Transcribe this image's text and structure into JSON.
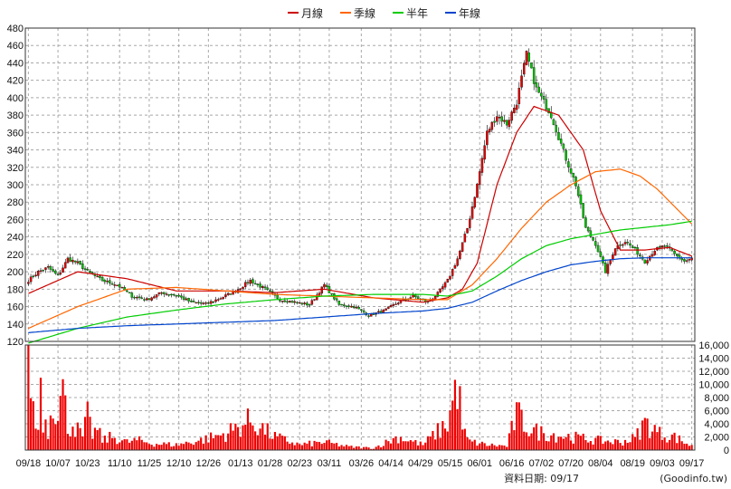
{
  "chart_data": [
    {
      "type": "candlestick",
      "ylim": [
        120,
        480
      ],
      "y_ticks": [
        480,
        460,
        440,
        420,
        400,
        380,
        360,
        340,
        320,
        300,
        280,
        260,
        240,
        220,
        200,
        180,
        160,
        140,
        120
      ],
      "x_tick_labels": [
        "09/18",
        "10/07",
        "10/23",
        "11/10",
        "11/25",
        "12/10",
        "12/26",
        "01/13",
        "01/28",
        "02/23",
        "03/11",
        "03/26",
        "04/14",
        "04/29",
        "05/15",
        "06/01",
        "06/16",
        "07/02",
        "07/20",
        "08/04",
        "08/19",
        "09/03",
        "09/17"
      ],
      "grid": true,
      "legend_position": "top-center",
      "legend": [
        {
          "name": "月線",
          "color": "#cc0000"
        },
        {
          "name": "季線",
          "color": "#ff6600"
        },
        {
          "name": "半年",
          "color": "#00cc00"
        },
        {
          "name": "年線",
          "color": "#0044cc"
        }
      ],
      "candle_up_color": "#e00000",
      "candle_down_color": "#00c000",
      "close_anchors": {
        "x_index": [
          0,
          4,
          8,
          12,
          16,
          20,
          24,
          30,
          36,
          42,
          48,
          54,
          60,
          66,
          72,
          78,
          84,
          90,
          96,
          102,
          108,
          114,
          120,
          126,
          132,
          138,
          144,
          150,
          156,
          162,
          166,
          170,
          174,
          178,
          182,
          186,
          190,
          194,
          198,
          202,
          206,
          212,
          218,
          222,
          226,
          230,
          234,
          238,
          242,
          246,
          250,
          254,
          258,
          262,
          266,
          269
        ],
        "close": [
          190,
          200,
          205,
          195,
          215,
          210,
          200,
          190,
          185,
          172,
          168,
          176,
          173,
          165,
          163,
          170,
          178,
          190,
          180,
          168,
          165,
          162,
          185,
          162,
          160,
          150,
          155,
          165,
          172,
          165,
          175,
          190,
          215,
          250,
          300,
          360,
          380,
          370,
          395,
          450,
          410,
          380,
          330,
          300,
          250,
          232,
          200,
          228,
          235,
          225,
          212,
          225,
          230,
          220,
          212,
          215
        ]
      },
      "moving_averages": [
        {
          "name": "月線",
          "x_index": [
            0,
            20,
            40,
            60,
            80,
            100,
            120,
            140,
            160,
            170,
            176,
            182,
            190,
            198,
            205,
            215,
            225,
            232,
            240,
            250,
            260,
            269
          ],
          "values": [
            175,
            200,
            192,
            178,
            178,
            176,
            180,
            170,
            165,
            170,
            180,
            210,
            300,
            360,
            390,
            380,
            340,
            270,
            225,
            225,
            228,
            218
          ]
        },
        {
          "name": "季線",
          "x_index": [
            0,
            20,
            40,
            60,
            80,
            100,
            120,
            140,
            160,
            170,
            180,
            190,
            200,
            210,
            220,
            230,
            240,
            248,
            255,
            262,
            269
          ],
          "values": [
            135,
            160,
            180,
            182,
            178,
            174,
            172,
            170,
            168,
            168,
            185,
            215,
            250,
            280,
            300,
            315,
            318,
            310,
            295,
            275,
            255
          ]
        },
        {
          "name": "半年",
          "x_index": [
            0,
            20,
            40,
            60,
            80,
            100,
            120,
            140,
            160,
            170,
            180,
            190,
            200,
            210,
            220,
            230,
            240,
            250,
            260,
            269
          ],
          "values": [
            118,
            135,
            148,
            156,
            163,
            168,
            172,
            174,
            174,
            172,
            178,
            195,
            215,
            230,
            238,
            243,
            248,
            251,
            254,
            258
          ]
        },
        {
          "name": "年線",
          "x_index": [
            0,
            20,
            40,
            60,
            80,
            100,
            120,
            140,
            160,
            170,
            180,
            190,
            200,
            210,
            220,
            230,
            240,
            250,
            260,
            269
          ],
          "values": [
            130,
            135,
            138,
            140,
            142,
            144,
            148,
            152,
            155,
            158,
            165,
            178,
            190,
            200,
            208,
            212,
            215,
            216,
            216,
            216
          ]
        }
      ]
    },
    {
      "type": "bar",
      "ylim": [
        0,
        16000
      ],
      "y_ticks": [
        16000,
        14000,
        12000,
        10000,
        8000,
        6000,
        4000,
        2000,
        0
      ],
      "bar_color": "#ee0000",
      "volume_anchors": {
        "x_index": [
          0,
          1,
          2,
          3,
          4,
          5,
          6,
          8,
          10,
          12,
          14,
          16,
          18,
          20,
          22,
          24,
          26,
          28,
          30,
          34,
          40,
          44,
          50,
          60,
          70,
          80,
          90,
          100,
          110,
          120,
          130,
          140,
          150,
          160,
          165,
          170,
          174,
          176,
          178,
          180,
          186,
          194,
          198,
          200,
          204,
          210,
          220,
          230,
          240,
          246,
          250,
          256,
          262,
          269
        ],
        "volume": [
          16000,
          12000,
          6000,
          4000,
          3000,
          11500,
          5000,
          3000,
          8000,
          6500,
          9000,
          3500,
          4000,
          3000,
          2000,
          5000,
          2500,
          3000,
          1500,
          2000,
          1200,
          1500,
          1000,
          800,
          1500,
          2500,
          4500,
          2000,
          800,
          1200,
          500,
          300,
          2000,
          800,
          2500,
          4000,
          10500,
          3500,
          1500,
          1200,
          800,
          600,
          5500,
          4500,
          3000,
          2500,
          2000,
          1500,
          1200,
          1800,
          4200,
          2500,
          2000,
          600
        ]
      }
    }
  ],
  "legend": {
    "monthly_label": "月線",
    "quarterly_label": "季線",
    "half_year_label": "半年",
    "yearly_label": "年線"
  },
  "footer": {
    "data_date": "資料日期: 09/17",
    "source": "(Goodinfo.tw)"
  }
}
